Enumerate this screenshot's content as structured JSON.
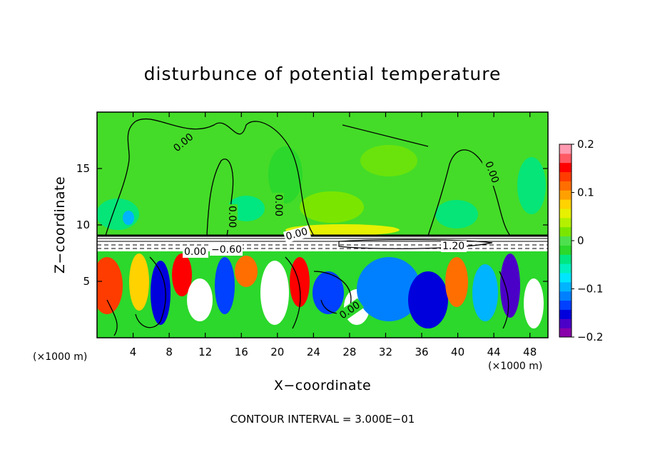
{
  "chart_data": {
    "type": "heatmap",
    "title": "disturbunce of potential temperature",
    "xlabel": "X−coordinate",
    "ylabel": "Z−coordinate",
    "x_unit": "(×1000 m)",
    "x_unit_right": "(×1000 m)",
    "xlim": [
      0,
      50
    ],
    "ylim": [
      0,
      20
    ],
    "x_ticks": [
      4,
      8,
      12,
      16,
      20,
      24,
      28,
      32,
      36,
      40,
      44,
      48
    ],
    "y_ticks": [
      5,
      10,
      15
    ],
    "colorbar": {
      "min": -0.2,
      "max": 0.2,
      "ticks": [
        {
          "value": 0.2,
          "label": "0.2"
        },
        {
          "value": 0.1,
          "label": "0.1"
        },
        {
          "value": 0,
          "label": "0"
        },
        {
          "value": -0.1,
          "label": "−0.1"
        },
        {
          "value": -0.2,
          "label": "−0.2"
        }
      ],
      "colors": [
        "#8800aa",
        "#4b00c8",
        "#0000dd",
        "#0040ff",
        "#0080ff",
        "#00b4ff",
        "#00e6ff",
        "#00f0c0",
        "#00e680",
        "#2bd82b",
        "#4ee04e",
        "#7ae600",
        "#b4f000",
        "#e6f000",
        "#ffd200",
        "#ffa000",
        "#ff6e00",
        "#ff3c00",
        "#ff0000",
        "#ff5a64",
        "#ff9ab0"
      ]
    },
    "contour_labels": [
      "0.00",
      "0.00",
      "0.00",
      "0.00",
      "0.00",
      "1.20",
      "0.00",
      "0.00",
      "−0.60"
    ],
    "contour_interval_text": "CONTOUR INTERVAL = 3.000E−01",
    "grid": false
  }
}
